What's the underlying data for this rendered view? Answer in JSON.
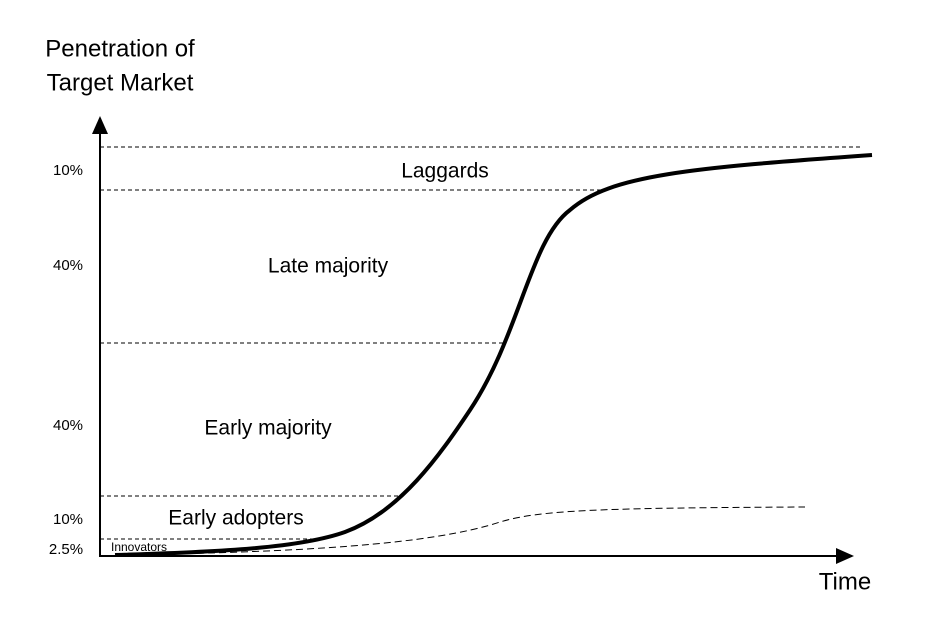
{
  "axes": {
    "y_label": [
      "Penetration of",
      "Target Market"
    ],
    "x_label": "Time"
  },
  "segments": [
    {
      "name": "Laggards",
      "share": "10%"
    },
    {
      "name": "Late majority",
      "share": "40%"
    },
    {
      "name": "Early majority",
      "share": "40%"
    },
    {
      "name": "Early adopters",
      "share": "10%"
    },
    {
      "name": "Innovators",
      "share": "2.5%"
    }
  ]
}
